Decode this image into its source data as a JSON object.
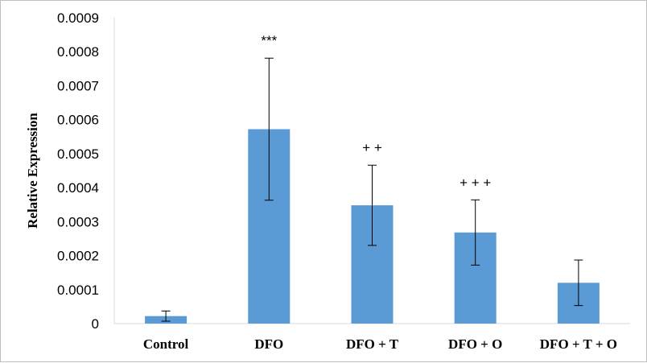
{
  "chart_data": {
    "type": "bar",
    "title": "",
    "xlabel": "",
    "ylabel": "Relative Expression",
    "ylim": [
      0,
      0.0009
    ],
    "y_ticks": [
      "0",
      "0.0001",
      "0.0002",
      "0.0003",
      "0.0004",
      "0.0005",
      "0.0006",
      "0.0007",
      "0.0008",
      "0.0009"
    ],
    "categories": [
      "Control",
      "DFO",
      "DFO + T",
      "DFO + O",
      "DFO + T + O"
    ],
    "values": [
      2.2e-05,
      0.000572,
      0.000348,
      0.000268,
      0.00012
    ],
    "error_bars": [
      1.5e-05,
      0.000209,
      0.000118,
      9.6e-05,
      6.7e-05
    ],
    "annotations": [
      "",
      "***",
      "+ +",
      "+ + +",
      ""
    ],
    "bar_color": "#5b9bd5",
    "grid": false,
    "legend": "none"
  }
}
